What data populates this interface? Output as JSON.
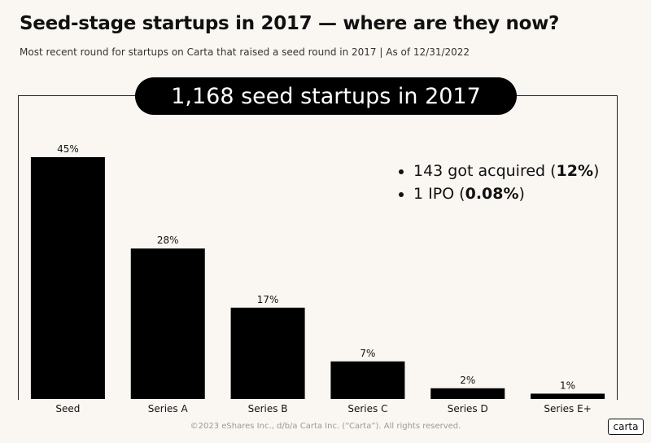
{
  "header": {
    "title": "Seed-stage startups in 2017 — where are they now?",
    "subtitle": "Most recent round for startups on Carta that raised a seed round in 2017 | As of 12/31/2022"
  },
  "banner": "1,168 seed startups in 2017",
  "callouts": [
    {
      "text": "143 got acquired (",
      "bold": "12%",
      "tail": ")"
    },
    {
      "text": "1 IPO (",
      "bold": "0.08%",
      "tail": ")"
    }
  ],
  "chart_data": {
    "type": "bar",
    "title": "",
    "xlabel": "",
    "ylabel": "",
    "categories": [
      "Seed",
      "Series A",
      "Series B",
      "Series C",
      "Series D",
      "Series E+"
    ],
    "values": [
      45,
      28,
      17,
      7,
      2,
      1
    ],
    "labels": [
      "45%",
      "28%",
      "17%",
      "7%",
      "2%",
      "1%"
    ],
    "ylim": [
      0,
      50
    ],
    "grid": false,
    "bar_color": "#000000"
  },
  "footer": "©2023 eShares Inc., d/b/a Carta Inc. (“Carta”). All rights reserved.",
  "logo": "carta"
}
